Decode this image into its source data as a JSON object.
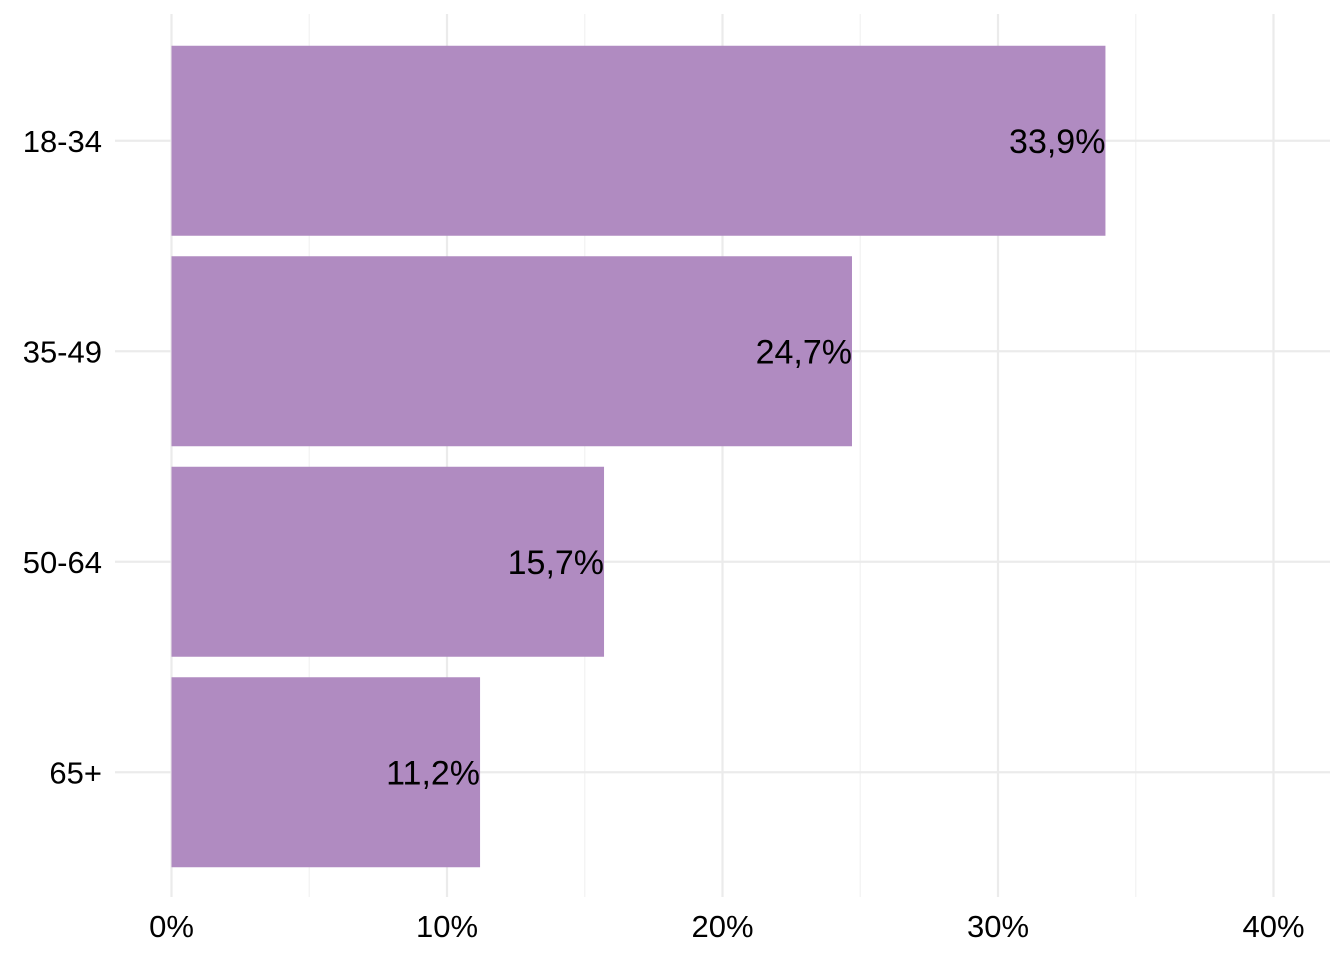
{
  "chart_data": {
    "type": "bar",
    "orientation": "horizontal",
    "categories": [
      "18-34",
      "35-49",
      "50-64",
      "65+"
    ],
    "values": [
      33.9,
      24.7,
      15.7,
      11.2
    ],
    "data_labels": [
      "33,9%",
      "24,7%",
      "15,7%",
      "11,2%"
    ],
    "xlim": [
      0,
      40
    ],
    "xticks": [
      0,
      10,
      20,
      30,
      40
    ],
    "xtick_labels": [
      "0%",
      "10%",
      "20%",
      "30%",
      "40%"
    ],
    "title": "",
    "xlabel": "",
    "ylabel": "",
    "grid": true,
    "legend": "none",
    "colors": {
      "bar": "#b08bc1",
      "grid_major": "#ebebeb",
      "grid_minor": "#f2f2f2",
      "text": "#000000"
    }
  }
}
